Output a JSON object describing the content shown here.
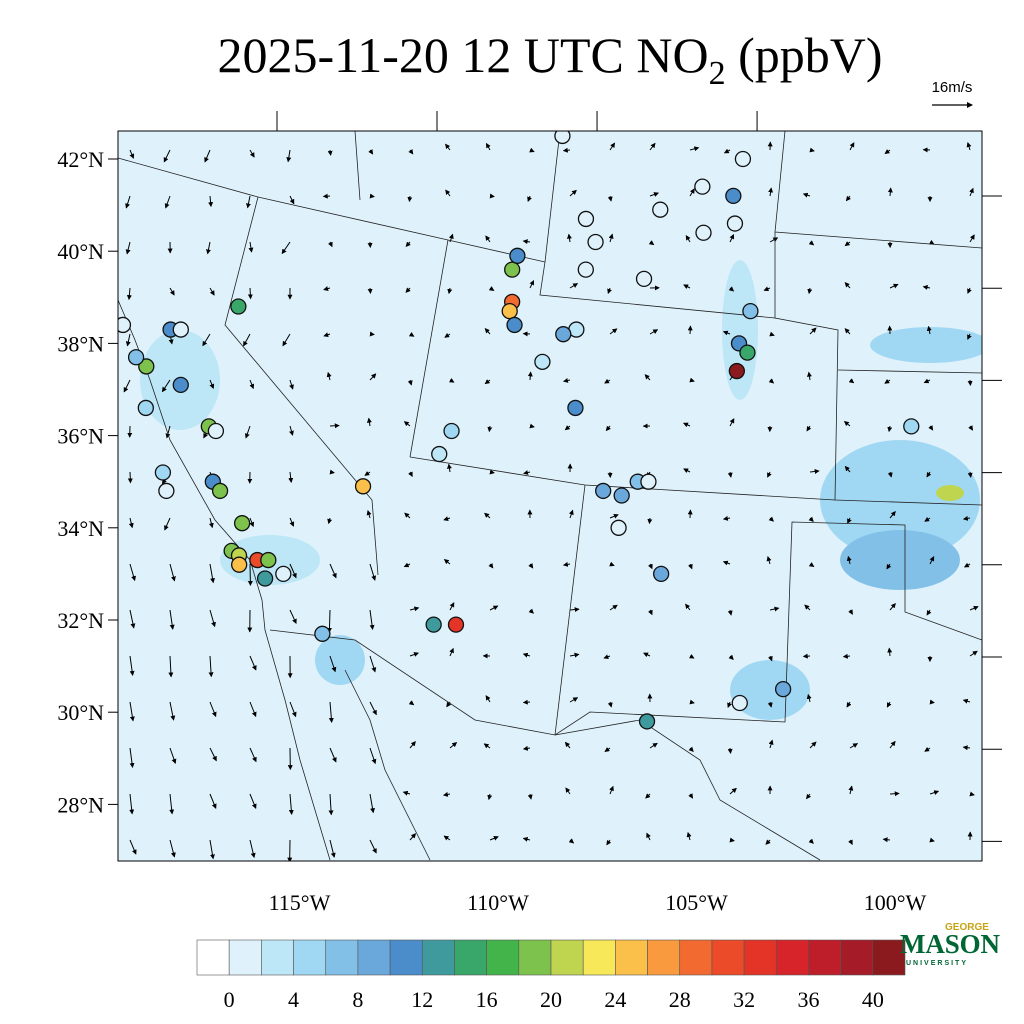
{
  "title": {
    "main": "2025-11-20 12 UTC NO",
    "subscript": "2",
    "suffix": " (ppbV)"
  },
  "wind_reference": "16m/s",
  "map": {
    "lat_ticks": [
      {
        "value": 42,
        "label": "42°N"
      },
      {
        "value": 40,
        "label": "40°N"
      },
      {
        "value": 38,
        "label": "38°N"
      },
      {
        "value": 36,
        "label": "36°N"
      },
      {
        "value": 34,
        "label": "34°N"
      },
      {
        "value": 32,
        "label": "32°N"
      },
      {
        "value": 30,
        "label": "30°N"
      },
      {
        "value": 28,
        "label": "28°N"
      }
    ],
    "lon_ticks": [
      {
        "value": -115,
        "label": "115°W"
      },
      {
        "value": -110,
        "label": "110°W"
      },
      {
        "value": -105,
        "label": "105°W"
      },
      {
        "value": -100,
        "label": "100°W"
      }
    ]
  },
  "colorbar": {
    "levels": [
      0,
      2,
      4,
      6,
      8,
      10,
      12,
      14,
      16,
      18,
      20,
      22,
      24,
      26,
      28,
      30,
      32,
      34,
      36,
      38,
      40
    ],
    "ticks": [
      0,
      4,
      8,
      12,
      16,
      20,
      24,
      28,
      32,
      36,
      40
    ],
    "colors": [
      "#ffffff",
      "#dff2fb",
      "#bde6f7",
      "#a0d8f3",
      "#82c0e8",
      "#6aa8dc",
      "#4b8dcb",
      "#3f9a9e",
      "#3aa76a",
      "#43b449",
      "#7dc24c",
      "#bfd54f",
      "#f7e85a",
      "#fbc04a",
      "#f99a3e",
      "#f26a30",
      "#ec4b2a",
      "#e33427",
      "#d7242a",
      "#be1e2a",
      "#a51b28",
      "#8b1a1e"
    ]
  },
  "stations": [
    {
      "lon": -119.7,
      "lat": 38.4,
      "value": 1
    },
    {
      "lon": -119.0,
      "lat": 37.5,
      "value": 18
    },
    {
      "lon": -119.3,
      "lat": 37.7,
      "value": 6
    },
    {
      "lon": -118.3,
      "lat": 38.3,
      "value": 10
    },
    {
      "lon": -118.0,
      "lat": 38.3,
      "value": 1
    },
    {
      "lon": -118.0,
      "lat": 37.1,
      "value": 10
    },
    {
      "lon": -119.0,
      "lat": 36.6,
      "value": 4
    },
    {
      "lon": -117.2,
      "lat": 36.2,
      "value": 18
    },
    {
      "lon": -117.0,
      "lat": 36.1,
      "value": 1
    },
    {
      "lon": -118.5,
      "lat": 35.2,
      "value": 4
    },
    {
      "lon": -118.4,
      "lat": 34.8,
      "value": 1
    },
    {
      "lon": -117.1,
      "lat": 35.0,
      "value": 10
    },
    {
      "lon": -116.9,
      "lat": 34.8,
      "value": 18
    },
    {
      "lon": -116.3,
      "lat": 34.1,
      "value": 18
    },
    {
      "lon": -116.3,
      "lat": 38.8,
      "value": 14
    },
    {
      "lon": -116.6,
      "lat": 33.5,
      "value": 18
    },
    {
      "lon": -116.4,
      "lat": 33.4,
      "value": 20
    },
    {
      "lon": -116.4,
      "lat": 33.2,
      "value": 24
    },
    {
      "lon": -115.9,
      "lat": 33.3,
      "value": 30
    },
    {
      "lon": -115.6,
      "lat": 33.3,
      "value": 18
    },
    {
      "lon": -115.7,
      "lat": 32.9,
      "value": 12
    },
    {
      "lon": -115.2,
      "lat": 33.0,
      "value": 1
    },
    {
      "lon": -112.9,
      "lat": 34.9,
      "value": 25
    },
    {
      "lon": -114.2,
      "lat": 31.7,
      "value": 6
    },
    {
      "lon": -111.2,
      "lat": 31.9,
      "value": 12
    },
    {
      "lon": -110.6,
      "lat": 31.9,
      "value": 32
    },
    {
      "lon": -110.3,
      "lat": 36.1,
      "value": 4
    },
    {
      "lon": -110.7,
      "lat": 35.6,
      "value": 2
    },
    {
      "lon": -108.1,
      "lat": 39.6,
      "value": 18
    },
    {
      "lon": -108.2,
      "lat": 38.9,
      "value": 28
    },
    {
      "lon": -108.3,
      "lat": 38.7,
      "value": 24
    },
    {
      "lon": -108.2,
      "lat": 38.4,
      "value": 10
    },
    {
      "lon": -107.9,
      "lat": 39.9,
      "value": 10
    },
    {
      "lon": -107.5,
      "lat": 37.6,
      "value": 2
    },
    {
      "lon": -106.7,
      "lat": 36.6,
      "value": 10
    },
    {
      "lon": -106.4,
      "lat": 38.3,
      "value": 2
    },
    {
      "lon": -106.8,
      "lat": 38.2,
      "value": 8
    },
    {
      "lon": -105.9,
      "lat": 39.6,
      "value": 1
    },
    {
      "lon": -105.7,
      "lat": 40.7,
      "value": 1
    },
    {
      "lon": -105.5,
      "lat": 40.2,
      "value": 1
    },
    {
      "lon": -104.2,
      "lat": 39.4,
      "value": 1
    },
    {
      "lon": -103.4,
      "lat": 40.9,
      "value": 1
    },
    {
      "lon": -102.0,
      "lat": 41.4,
      "value": 1
    },
    {
      "lon": -101.1,
      "lat": 41.2,
      "value": 10
    },
    {
      "lon": -100.6,
      "lat": 42.0,
      "value": 1
    },
    {
      "lon": -102.2,
      "lat": 40.4,
      "value": 1
    },
    {
      "lon": -101.2,
      "lat": 40.6,
      "value": 1
    },
    {
      "lon": -101.7,
      "lat": 38.0,
      "value": 10
    },
    {
      "lon": -101.5,
      "lat": 37.8,
      "value": 14
    },
    {
      "lon": -101.9,
      "lat": 37.4,
      "value": 40
    },
    {
      "lon": -101.2,
      "lat": 38.7,
      "value": 6
    },
    {
      "lon": -97.2,
      "lat": 36.2,
      "value": 4
    },
    {
      "lon": -106.2,
      "lat": 34.8,
      "value": 8
    },
    {
      "lon": -105.2,
      "lat": 35.0,
      "value": 6
    },
    {
      "lon": -105.7,
      "lat": 34.7,
      "value": 8
    },
    {
      "lon": -104.9,
      "lat": 35.0,
      "value": 1
    },
    {
      "lon": -105.9,
      "lat": 34.0,
      "value": 1
    },
    {
      "lon": -104.9,
      "lat": 33.0,
      "value": 8
    },
    {
      "lon": -105.8,
      "lat": 29.8,
      "value": 12
    },
    {
      "lon": -103.3,
      "lat": 30.2,
      "value": 1
    },
    {
      "lon": -102.1,
      "lat": 30.5,
      "value": 8
    },
    {
      "lon": -106.1,
      "lat": 42.5,
      "value": 1
    }
  ],
  "logo": {
    "line1": "GEORGE",
    "line2": "MASON",
    "line3": "UNIVERSITY"
  }
}
